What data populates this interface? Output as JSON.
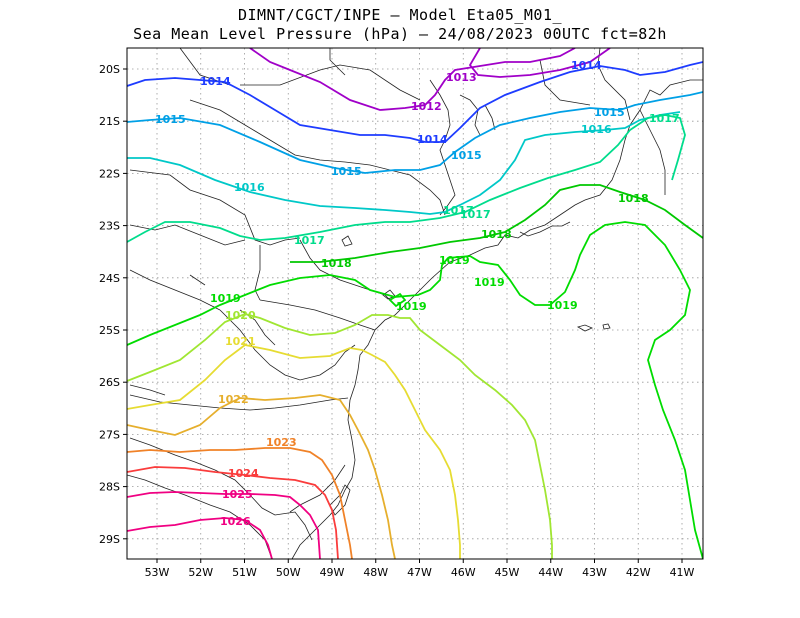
{
  "title_line1": "DIMNT/CGCT/INPE –  Model Eta05_M01_",
  "title_line2": "Sea Mean Level Pressure (hPa) – 24/08/2023 00UTC fct=82h",
  "lat_ticks": [
    "20S",
    "21S",
    "22S",
    "23S",
    "24S",
    "25S",
    "26S",
    "27S",
    "28S",
    "29S"
  ],
  "lon_ticks": [
    "53W",
    "52W",
    "51W",
    "50W",
    "49W",
    "48W",
    "47W",
    "46W",
    "45W",
    "44W",
    "43W",
    "42W",
    "41W"
  ],
  "contours": [
    {
      "value": "1012",
      "color": "#a000c8"
    },
    {
      "value": "1013",
      "color": "#a000c8"
    },
    {
      "value": "1014",
      "color": "#1e3cff"
    },
    {
      "value": "1015",
      "color": "#00a0e6"
    },
    {
      "value": "1016",
      "color": "#00c8c8"
    },
    {
      "value": "1017",
      "color": "#00dc8c"
    },
    {
      "value": "1018",
      "color": "#00c800"
    },
    {
      "value": "1019",
      "color": "#00dc00"
    },
    {
      "value": "1020",
      "color": "#a0e632"
    },
    {
      "value": "1021",
      "color": "#e6dc32"
    },
    {
      "value": "1022",
      "color": "#e6af2d"
    },
    {
      "value": "1023",
      "color": "#f08228"
    },
    {
      "value": "1024",
      "color": "#fa3c3c"
    },
    {
      "value": "1025",
      "color": "#f00082"
    },
    {
      "value": "1026",
      "color": "#f00082"
    }
  ]
}
